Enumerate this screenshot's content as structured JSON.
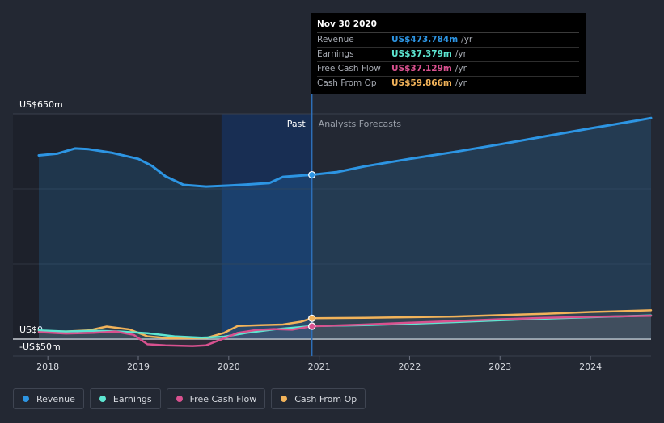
{
  "chart_data": {
    "type": "area",
    "y_axis": {
      "top_label": "US$650m",
      "zero_label": "US$0",
      "bottom_label": "-US$50m",
      "ylim": [
        -50,
        650
      ]
    },
    "x_axis": {
      "ticks": [
        "2018",
        "2019",
        "2020",
        "2021",
        "2022",
        "2023",
        "2024"
      ],
      "xlim": [
        2017.9,
        2024.67
      ]
    },
    "past_label": "Past",
    "forecast_label": "Analysts Forecasts",
    "past_end": 2020.92,
    "highlight_start": 2019.92,
    "series": [
      {
        "name": "Revenue",
        "color": "#2d95e3",
        "points": [
          [
            2017.9,
            530
          ],
          [
            2018.1,
            535
          ],
          [
            2018.3,
            550
          ],
          [
            2018.45,
            548
          ],
          [
            2018.7,
            538
          ],
          [
            2019.0,
            520
          ],
          [
            2019.15,
            500
          ],
          [
            2019.3,
            470
          ],
          [
            2019.5,
            445
          ],
          [
            2019.75,
            440
          ],
          [
            2020.0,
            443
          ],
          [
            2020.2,
            446
          ],
          [
            2020.45,
            450
          ],
          [
            2020.6,
            468
          ],
          [
            2020.92,
            474
          ],
          [
            2021.2,
            482
          ],
          [
            2021.5,
            498
          ],
          [
            2022.0,
            520
          ],
          [
            2022.5,
            540
          ],
          [
            2023.0,
            562
          ],
          [
            2023.5,
            585
          ],
          [
            2024.0,
            608
          ],
          [
            2024.5,
            630
          ],
          [
            2024.67,
            638
          ]
        ]
      },
      {
        "name": "Earnings",
        "color": "#5de6d1",
        "points": [
          [
            2017.9,
            25
          ],
          [
            2018.2,
            22
          ],
          [
            2018.5,
            24
          ],
          [
            2018.8,
            22
          ],
          [
            2019.1,
            17
          ],
          [
            2019.4,
            8
          ],
          [
            2019.7,
            4
          ],
          [
            2019.95,
            7
          ],
          [
            2020.2,
            18
          ],
          [
            2020.5,
            28
          ],
          [
            2020.92,
            37.4
          ],
          [
            2021.5,
            40
          ],
          [
            2022,
            44
          ],
          [
            2022.5,
            49
          ],
          [
            2023,
            54
          ],
          [
            2023.5,
            59
          ],
          [
            2024,
            63
          ],
          [
            2024.67,
            68
          ]
        ]
      },
      {
        "name": "Free Cash Flow",
        "color": "#d9518f",
        "points": [
          [
            2017.9,
            20
          ],
          [
            2018.2,
            16
          ],
          [
            2018.5,
            18
          ],
          [
            2018.75,
            22
          ],
          [
            2018.95,
            12
          ],
          [
            2019.1,
            -15
          ],
          [
            2019.3,
            -18
          ],
          [
            2019.6,
            -20
          ],
          [
            2019.75,
            -18
          ],
          [
            2019.95,
            2
          ],
          [
            2020.1,
            18
          ],
          [
            2020.3,
            26
          ],
          [
            2020.5,
            29
          ],
          [
            2020.7,
            27
          ],
          [
            2020.92,
            37.1
          ],
          [
            2021.5,
            42
          ],
          [
            2022,
            47
          ],
          [
            2022.5,
            52
          ],
          [
            2023,
            57
          ],
          [
            2023.5,
            61
          ],
          [
            2024,
            64
          ],
          [
            2024.67,
            67
          ]
        ]
      },
      {
        "name": "Cash From Op",
        "color": "#f2b35a",
        "points": [
          [
            2017.9,
            23
          ],
          [
            2018.2,
            22
          ],
          [
            2018.45,
            25
          ],
          [
            2018.65,
            36
          ],
          [
            2018.9,
            28
          ],
          [
            2019.1,
            8
          ],
          [
            2019.35,
            2
          ],
          [
            2019.75,
            3
          ],
          [
            2019.95,
            18
          ],
          [
            2020.1,
            38
          ],
          [
            2020.35,
            40
          ],
          [
            2020.6,
            42
          ],
          [
            2020.8,
            50
          ],
          [
            2020.92,
            59.9
          ],
          [
            2021.5,
            61
          ],
          [
            2022,
            63
          ],
          [
            2022.5,
            65
          ],
          [
            2023,
            69
          ],
          [
            2023.5,
            73
          ],
          [
            2024,
            78
          ],
          [
            2024.67,
            83
          ]
        ]
      }
    ]
  },
  "tooltip": {
    "date": "Nov 30 2020",
    "rows": [
      {
        "label": "Revenue",
        "value": "US$473.784m",
        "unit": "/yr",
        "color": "#2d95e3"
      },
      {
        "label": "Earnings",
        "value": "US$37.379m",
        "unit": "/yr",
        "color": "#5de6d1"
      },
      {
        "label": "Free Cash Flow",
        "value": "US$37.129m",
        "unit": "/yr",
        "color": "#d9518f"
      },
      {
        "label": "Cash From Op",
        "value": "US$59.866m",
        "unit": "/yr",
        "color": "#f2b35a"
      }
    ]
  },
  "legend": [
    {
      "label": "Revenue",
      "color": "#2d95e3"
    },
    {
      "label": "Earnings",
      "color": "#5de6d1"
    },
    {
      "label": "Free Cash Flow",
      "color": "#d9518f"
    },
    {
      "label": "Cash From Op",
      "color": "#f2b35a"
    }
  ]
}
